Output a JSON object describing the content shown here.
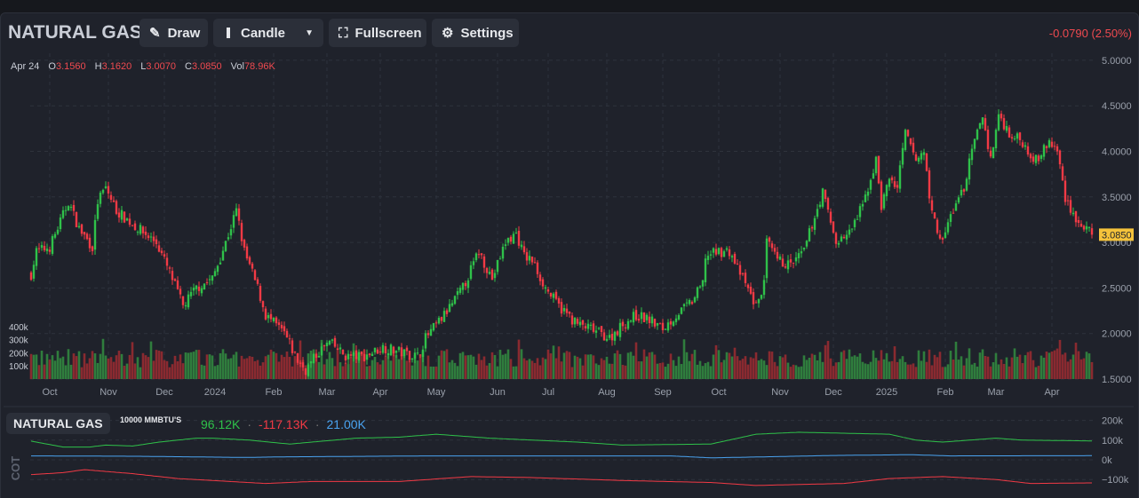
{
  "header": {
    "title": "NATURAL GAS",
    "draw": "Draw",
    "candle": "Candle",
    "fullscreen": "Fullscreen",
    "settings": "Settings",
    "change": "-0.0790 (2.50%)"
  },
  "ohlc": {
    "date": "Apr 24",
    "o_label": "O",
    "o": "3.1560",
    "h_label": "H",
    "h": "3.1620",
    "l_label": "L",
    "l": "3.0070",
    "c_label": "C",
    "c": "3.0850",
    "vol_label": "Vol",
    "vol": "78.96K"
  },
  "cot": {
    "title": "NATURAL GAS",
    "unit": "10000 MMBTU'S",
    "long": "96.12K",
    "short": "-117.13K",
    "net": "21.00K",
    "label": "COT",
    "sep": "·"
  },
  "colors": {
    "up": "#2fc14a",
    "down": "#f23a45",
    "vol_up": "#2f7d3d",
    "vol_down": "#8a2a30",
    "net": "#4aa3f0",
    "last": "#f5c33b"
  },
  "chart_data": [
    {
      "type": "candlestick",
      "title": "NATURAL GAS",
      "x_unit": "trading day index",
      "ylim": [
        1.5,
        5.0
      ],
      "yticks": [
        "5.0000",
        "4.5000",
        "4.0000",
        "3.5000",
        "3.0000",
        "2.5000",
        "2.0000",
        "1.5000"
      ],
      "last_price": "3.0850",
      "xticks": [
        {
          "i": 7,
          "label": "Oct"
        },
        {
          "i": 29,
          "label": "Nov"
        },
        {
          "i": 50,
          "label": "Dec"
        },
        {
          "i": 69,
          "label": "2024"
        },
        {
          "i": 91,
          "label": "Feb"
        },
        {
          "i": 111,
          "label": "Mar"
        },
        {
          "i": 131,
          "label": "Apr"
        },
        {
          "i": 152,
          "label": "May"
        },
        {
          "i": 175,
          "label": "Jun"
        },
        {
          "i": 194,
          "label": "Jul"
        },
        {
          "i": 216,
          "label": "Aug"
        },
        {
          "i": 237,
          "label": "Sep"
        },
        {
          "i": 258,
          "label": "Oct"
        },
        {
          "i": 281,
          "label": "Nov"
        },
        {
          "i": 301,
          "label": "Dec"
        },
        {
          "i": 321,
          "label": "2025"
        },
        {
          "i": 343,
          "label": "Feb"
        },
        {
          "i": 362,
          "label": "Mar"
        },
        {
          "i": 383,
          "label": "Apr"
        }
      ],
      "close_path": [
        [
          0,
          2.65
        ],
        [
          2,
          2.9
        ],
        [
          7,
          2.95
        ],
        [
          12,
          3.3
        ],
        [
          14,
          3.45
        ],
        [
          18,
          3.15
        ],
        [
          23,
          2.95
        ],
        [
          25,
          3.45
        ],
        [
          28,
          3.6
        ],
        [
          32,
          3.35
        ],
        [
          38,
          3.2
        ],
        [
          47,
          3.0
        ],
        [
          53,
          2.6
        ],
        [
          57,
          2.3
        ],
        [
          62,
          2.5
        ],
        [
          68,
          2.6
        ],
        [
          73,
          3.0
        ],
        [
          77,
          3.35
        ],
        [
          80,
          2.9
        ],
        [
          85,
          2.5
        ],
        [
          88,
          2.2
        ],
        [
          95,
          2.0
        ],
        [
          100,
          1.7
        ],
        [
          103,
          1.6
        ],
        [
          108,
          1.8
        ],
        [
          112,
          1.9
        ],
        [
          118,
          1.75
        ],
        [
          125,
          1.75
        ],
        [
          132,
          1.85
        ],
        [
          138,
          1.8
        ],
        [
          145,
          1.75
        ],
        [
          148,
          1.95
        ],
        [
          155,
          2.2
        ],
        [
          162,
          2.5
        ],
        [
          168,
          2.9
        ],
        [
          173,
          2.6
        ],
        [
          178,
          3.0
        ],
        [
          182,
          3.1
        ],
        [
          185,
          2.85
        ],
        [
          188,
          2.8
        ],
        [
          193,
          2.5
        ],
        [
          198,
          2.3
        ],
        [
          205,
          2.1
        ],
        [
          210,
          2.05
        ],
        [
          217,
          1.95
        ],
        [
          222,
          2.1
        ],
        [
          227,
          2.2
        ],
        [
          232,
          2.15
        ],
        [
          237,
          2.05
        ],
        [
          242,
          2.2
        ],
        [
          248,
          2.35
        ],
        [
          252,
          2.55
        ],
        [
          253,
          2.85
        ],
        [
          258,
          2.9
        ],
        [
          262,
          2.9
        ],
        [
          267,
          2.6
        ],
        [
          272,
          2.3
        ],
        [
          275,
          2.55
        ],
        [
          276,
          3.0
        ],
        [
          280,
          2.8
        ],
        [
          285,
          2.75
        ],
        [
          290,
          2.9
        ],
        [
          293,
          3.2
        ],
        [
          297,
          3.55
        ],
        [
          302,
          3.0
        ],
        [
          307,
          3.1
        ],
        [
          312,
          3.4
        ],
        [
          317,
          3.9
        ],
        [
          319,
          3.4
        ],
        [
          322,
          3.7
        ],
        [
          325,
          3.6
        ],
        [
          328,
          4.2
        ],
        [
          332,
          3.9
        ],
        [
          335,
          4.0
        ],
        [
          338,
          3.3
        ],
        [
          342,
          3.0
        ],
        [
          345,
          3.3
        ],
        [
          350,
          3.6
        ],
        [
          353,
          4.0
        ],
        [
          357,
          4.4
        ],
        [
          360,
          3.9
        ],
        [
          363,
          4.4
        ],
        [
          367,
          4.2
        ],
        [
          372,
          4.1
        ],
        [
          377,
          3.9
        ],
        [
          382,
          4.1
        ],
        [
          385,
          4.0
        ],
        [
          388,
          3.5
        ],
        [
          393,
          3.2
        ],
        [
          398,
          3.085
        ]
      ],
      "volume": {
        "yticks": [
          "400k",
          "300k",
          "200k",
          "100k"
        ],
        "typical_range_k": [
          80,
          260
        ]
      }
    },
    {
      "type": "line",
      "title": "COT",
      "yticks": [
        "200k",
        "100k",
        "0k",
        "−100k"
      ],
      "ylim": [
        -130,
        210
      ],
      "series": [
        {
          "name": "long",
          "color": "#2fc14a",
          "points": [
            [
              0,
              95
            ],
            [
              12,
              65
            ],
            [
              22,
              65
            ],
            [
              28,
              75
            ],
            [
              38,
              70
            ],
            [
              48,
              90
            ],
            [
              62,
              110
            ],
            [
              68,
              110
            ],
            [
              82,
              100
            ],
            [
              97,
              80
            ],
            [
              122,
              110
            ],
            [
              138,
              115
            ],
            [
              152,
              130
            ],
            [
              172,
              110
            ],
            [
              205,
              90
            ],
            [
              222,
              75
            ],
            [
              255,
              80
            ],
            [
              272,
              130
            ],
            [
              288,
              140
            ],
            [
              322,
              130
            ],
            [
              332,
              100
            ],
            [
              342,
              90
            ],
            [
              362,
              110
            ],
            [
              372,
              100
            ],
            [
              398,
              96
            ]
          ]
        },
        {
          "name": "net",
          "color": "#4aa3f0",
          "points": [
            [
              0,
              20
            ],
            [
              40,
              18
            ],
            [
              80,
              12
            ],
            [
              95,
              15
            ],
            [
              150,
              20
            ],
            [
              240,
              20
            ],
            [
              255,
              10
            ],
            [
              275,
              15
            ],
            [
              300,
              22
            ],
            [
              330,
              26
            ],
            [
              345,
              20
            ],
            [
              398,
              21
            ]
          ]
        },
        {
          "name": "short",
          "color": "#f23a45",
          "points": [
            [
              0,
              -75
            ],
            [
              12,
              -65
            ],
            [
              20,
              -50
            ],
            [
              38,
              -70
            ],
            [
              55,
              -95
            ],
            [
              88,
              -120
            ],
            [
              105,
              -110
            ],
            [
              138,
              -110
            ],
            [
              165,
              -85
            ],
            [
              188,
              -90
            ],
            [
              222,
              -105
            ],
            [
              255,
              -115
            ],
            [
              272,
              -130
            ],
            [
              305,
              -120
            ],
            [
              322,
              -95
            ],
            [
              342,
              -85
            ],
            [
              362,
              -100
            ],
            [
              375,
              -120
            ],
            [
              398,
              -117
            ]
          ]
        }
      ]
    }
  ]
}
